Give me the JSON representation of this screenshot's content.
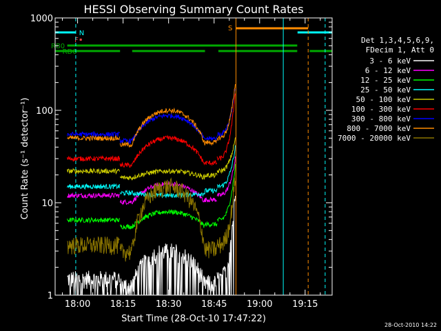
{
  "chart_data": {
    "type": "line",
    "title": "HESSI Observing Summary Count Rates",
    "xlabel": "Start Time (28-Oct-10 17:47:22)",
    "ylabel": "Count Rate (s⁻¹ detector⁻¹)",
    "yscale": "log",
    "ylim": [
      1,
      1000
    ],
    "xlim_minutes": [
      -7.4,
      83.9
    ],
    "x_ticks": [
      {
        "label": "18:00",
        "t": 0
      },
      {
        "label": "18:15",
        "t": 15
      },
      {
        "label": "18:30",
        "t": 30
      },
      {
        "label": "18:45",
        "t": 45
      },
      {
        "label": "19:00",
        "t": 60
      },
      {
        "label": "19:15",
        "t": 75
      }
    ],
    "y_ticks": [
      {
        "label": "1",
        "v": 1
      },
      {
        "label": "10",
        "v": 10
      },
      {
        "label": "100",
        "v": 100
      },
      {
        "label": "1000",
        "v": 1000
      }
    ],
    "legend_header": [
      "Det 1,3,4,5,6,9,",
      "FDecim 1, Att 0"
    ],
    "series": [
      {
        "name": "3 - 6 keV",
        "color": "#ffffff",
        "pre": 1.5,
        "peak": 3,
        "spike": 15
      },
      {
        "name": "6 - 12 keV",
        "color": "#ff00ff",
        "pre": 12,
        "peak": 16,
        "spike": 30
      },
      {
        "name": "12 - 25 keV",
        "color": "#00ff00",
        "pre": 6.5,
        "peak": 8,
        "spike": 25
      },
      {
        "name": "25 - 50 keV",
        "color": "#00ffff",
        "pre": 15,
        "peak": 12,
        "spike": 40
      },
      {
        "name": "50 - 100 keV",
        "color": "#cccc00",
        "pre": 22,
        "peak": 22,
        "spike": 50
      },
      {
        "name": "100 - 300 keV",
        "color": "#ff0000",
        "pre": 30,
        "peak": 50,
        "spike": 160
      },
      {
        "name": "300 - 800 keV",
        "color": "#0000ff",
        "pre": 55,
        "peak": 88,
        "spike": 180
      },
      {
        "name": "800 - 7000 keV",
        "color": "#ff8c00",
        "pre": 50,
        "peak": 100,
        "spike": 200
      },
      {
        "name": "7000 - 20000 keV",
        "color": "#8b7500",
        "pre": 3.5,
        "peak": 15,
        "spike": 20
      }
    ],
    "flags": [
      {
        "label": "N",
        "color": "#00ffff"
      },
      {
        "label": "F",
        "color": "#ff4444"
      },
      {
        "label": "S",
        "color": "#ff8c00"
      },
      {
        "label": "RB0",
        "color": "#00aa00"
      },
      {
        "label": "RD6",
        "color": "#00aa00"
      }
    ],
    "timestamp": "28-Oct-2010 14:22"
  }
}
